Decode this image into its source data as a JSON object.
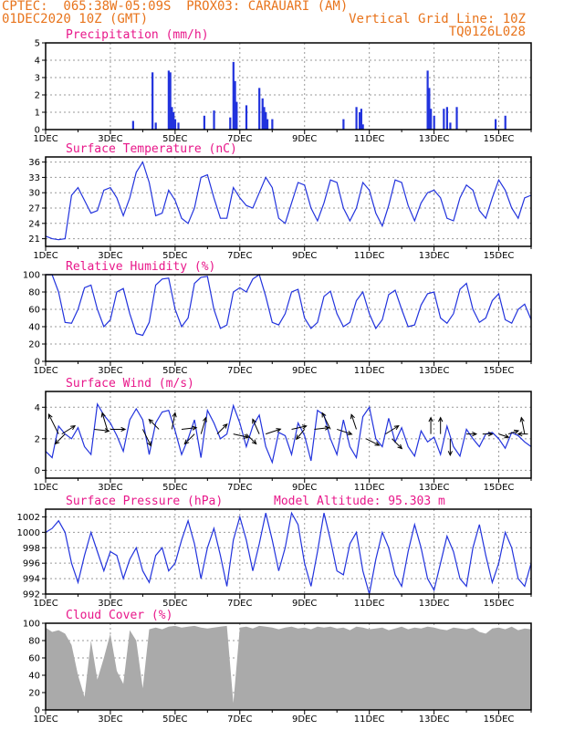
{
  "header": {
    "line1_left": "CPTEC:  065:38W-05:09S  PROX03: CARAUARI (AM)",
    "line2_left": "01DEC2020 10Z (GMT)",
    "line2_right": "Vertical Grid Line: 10Z",
    "line3_right": "TQ0126L028"
  },
  "colors": {
    "header": "#e8741c",
    "title": "#e8178a",
    "series": "#2233dd",
    "cloud": "#aaaaaa"
  },
  "x_days": [
    "1DEC",
    "3DEC",
    "5DEC",
    "7DEC",
    "9DEC",
    "11DEC",
    "13DEC",
    "15DEC"
  ],
  "chart_data": [
    {
      "type": "bar",
      "id": "precip",
      "title": "Precipitation (mm/h)",
      "ylim": [
        0,
        5
      ],
      "yticks": [
        0,
        1,
        2,
        3,
        4,
        5
      ],
      "x_days_range": [
        1,
        16
      ],
      "x": [
        3.7,
        4.3,
        4.4,
        4.8,
        4.85,
        4.9,
        4.95,
        5.0,
        5.1,
        5.9,
        6.2,
        6.7,
        6.8,
        6.85,
        6.9,
        7.2,
        7.6,
        7.7,
        7.75,
        7.8,
        7.85,
        8.0,
        10.2,
        10.6,
        10.7,
        10.75,
        10.8,
        12.8,
        12.85,
        12.9,
        13.0,
        13.3,
        13.4,
        13.5,
        13.7,
        14.9,
        15.2
      ],
      "values": [
        0.5,
        3.3,
        0.4,
        3.4,
        3.3,
        1.3,
        1.0,
        0.6,
        0.4,
        0.8,
        1.1,
        0.7,
        3.9,
        2.8,
        1.6,
        1.4,
        2.4,
        1.8,
        1.3,
        1.0,
        0.6,
        0.6,
        0.6,
        1.3,
        1.0,
        1.2,
        0.3,
        3.4,
        2.4,
        1.2,
        0.8,
        1.2,
        1.3,
        0.4,
        1.3,
        0.6,
        0.8
      ]
    },
    {
      "type": "line",
      "id": "temp",
      "title": "Surface Temperature (nC)",
      "ylim": [
        19.5,
        37
      ],
      "yticks": [
        21,
        24,
        27,
        30,
        33,
        36
      ],
      "x": [
        1.0,
        1.2,
        1.4,
        1.6,
        1.8,
        2.0,
        2.2,
        2.4,
        2.6,
        2.8,
        3.0,
        3.2,
        3.4,
        3.6,
        3.8,
        4.0,
        4.2,
        4.4,
        4.6,
        4.8,
        5.0,
        5.2,
        5.4,
        5.6,
        5.8,
        6.0,
        6.2,
        6.4,
        6.6,
        6.8,
        7.0,
        7.2,
        7.4,
        7.6,
        7.8,
        8.0,
        8.2,
        8.4,
        8.6,
        8.8,
        9.0,
        9.2,
        9.4,
        9.6,
        9.8,
        10.0,
        10.2,
        10.4,
        10.6,
        10.8,
        11.0,
        11.2,
        11.4,
        11.6,
        11.8,
        12.0,
        12.2,
        12.4,
        12.6,
        12.8,
        13.0,
        13.2,
        13.4,
        13.6,
        13.8,
        14.0,
        14.2,
        14.4,
        14.6,
        14.8,
        15.0,
        15.2,
        15.4,
        15.6,
        15.8,
        16.0
      ],
      "values": [
        21.5,
        21,
        20.8,
        21,
        29.5,
        31,
        28.5,
        26,
        26.5,
        30.5,
        31,
        29,
        25.5,
        29,
        34,
        36,
        32,
        25.5,
        26,
        30.5,
        28.5,
        25,
        24,
        27,
        33,
        33.5,
        29,
        25,
        25,
        31,
        29,
        27.5,
        27,
        30,
        33,
        31,
        25,
        24,
        28,
        32,
        31.5,
        27,
        24.5,
        28,
        32.5,
        32,
        27,
        24.5,
        27,
        32,
        30.5,
        26,
        23.5,
        27.5,
        32.5,
        32,
        27.5,
        24.5,
        28,
        30,
        30.5,
        29,
        25,
        24.5,
        29,
        31.5,
        30.5,
        26.5,
        25,
        29,
        32.5,
        30.5,
        27,
        25,
        29,
        29.5
      ]
    },
    {
      "type": "line",
      "id": "rh",
      "title": "Relative Humidity (%)",
      "ylim": [
        0,
        100
      ],
      "yticks": [
        0,
        20,
        40,
        60,
        80,
        100
      ],
      "x": [
        1.0,
        1.2,
        1.4,
        1.6,
        1.8,
        2.0,
        2.2,
        2.4,
        2.6,
        2.8,
        3.0,
        3.2,
        3.4,
        3.6,
        3.8,
        4.0,
        4.2,
        4.4,
        4.6,
        4.8,
        5.0,
        5.2,
        5.4,
        5.6,
        5.8,
        6.0,
        6.2,
        6.4,
        6.6,
        6.8,
        7.0,
        7.2,
        7.4,
        7.6,
        7.8,
        8.0,
        8.2,
        8.4,
        8.6,
        8.8,
        9.0,
        9.2,
        9.4,
        9.6,
        9.8,
        10.0,
        10.2,
        10.4,
        10.6,
        10.8,
        11.0,
        11.2,
        11.4,
        11.6,
        11.8,
        12.0,
        12.2,
        12.4,
        12.6,
        12.8,
        13.0,
        13.2,
        13.4,
        13.6,
        13.8,
        14.0,
        14.2,
        14.4,
        14.6,
        14.8,
        15.0,
        15.2,
        15.4,
        15.6,
        15.8,
        16.0
      ],
      "values": [
        100,
        100,
        80,
        45,
        44,
        60,
        85,
        88,
        60,
        40,
        48,
        80,
        84,
        55,
        32,
        30,
        45,
        88,
        95,
        96,
        60,
        40,
        50,
        90,
        97,
        98,
        60,
        38,
        42,
        80,
        85,
        80,
        95,
        100,
        75,
        45,
        42,
        55,
        80,
        83,
        50,
        38,
        45,
        75,
        81,
        55,
        40,
        45,
        70,
        80,
        55,
        38,
        48,
        77,
        82,
        60,
        40,
        42,
        65,
        78,
        80,
        50,
        44,
        55,
        83,
        90,
        60,
        45,
        50,
        70,
        78,
        48,
        44,
        60,
        66,
        48
      ]
    },
    {
      "type": "line",
      "id": "wind",
      "title": "Surface Wind (m/s)",
      "ylim": [
        -0.5,
        5
      ],
      "yticks": [
        0,
        2,
        4
      ],
      "x": [
        1.0,
        1.2,
        1.4,
        1.6,
        1.8,
        2.0,
        2.2,
        2.4,
        2.6,
        2.8,
        3.0,
        3.2,
        3.4,
        3.6,
        3.8,
        4.0,
        4.2,
        4.4,
        4.6,
        4.8,
        5.0,
        5.2,
        5.4,
        5.6,
        5.8,
        6.0,
        6.2,
        6.4,
        6.6,
        6.8,
        7.0,
        7.2,
        7.4,
        7.6,
        7.8,
        8.0,
        8.2,
        8.4,
        8.6,
        8.8,
        9.0,
        9.2,
        9.4,
        9.6,
        9.8,
        10.0,
        10.2,
        10.4,
        10.6,
        10.8,
        11.0,
        11.2,
        11.4,
        11.6,
        11.8,
        12.0,
        12.2,
        12.4,
        12.6,
        12.8,
        13.0,
        13.2,
        13.4,
        13.6,
        13.8,
        14.0,
        14.2,
        14.4,
        14.6,
        14.8,
        15.0,
        15.2,
        15.4,
        15.6,
        15.8,
        16.0
      ],
      "values": [
        1.2,
        0.8,
        2.8,
        2.3,
        2.0,
        2.7,
        1.5,
        1.0,
        4.2,
        3.5,
        3.0,
        2.2,
        1.2,
        3.2,
        3.9,
        3.2,
        1.0,
        3.0,
        3.7,
        3.8,
        2.5,
        1.0,
        2.0,
        3.2,
        0.8,
        3.8,
        3.0,
        2.0,
        2.3,
        4.1,
        3.0,
        1.5,
        2.8,
        3.5,
        1.5,
        0.5,
        2.4,
        2.2,
        1.0,
        3.0,
        2.2,
        0.6,
        3.8,
        3.5,
        2.0,
        1.0,
        3.2,
        1.5,
        0.8,
        3.4,
        4.0,
        2.0,
        1.5,
        3.3,
        1.8,
        2.7,
        1.5,
        0.9,
        2.5,
        1.8,
        2.1,
        1.0,
        2.8,
        1.5,
        0.9,
        2.6,
        2.0,
        1.5,
        2.3,
        2.4,
        2.0,
        1.4,
        2.4,
        2.2,
        1.8,
        1.5
      ],
      "arrows": [
        {
          "x": 1.4,
          "y": 2.3,
          "u": -0.6,
          "v": 1.2
        },
        {
          "x": 1.5,
          "y": 2.3,
          "u": 0.8,
          "v": 0.5
        },
        {
          "x": 1.6,
          "y": 2.3,
          "u": -0.6,
          "v": -0.6
        },
        {
          "x": 2.5,
          "y": 2.6,
          "u": 0.9,
          "v": -0.1
        },
        {
          "x": 2.9,
          "y": 2.6,
          "u": -0.3,
          "v": 1.0
        },
        {
          "x": 3.0,
          "y": 2.6,
          "u": 0.9,
          "v": 0.0
        },
        {
          "x": 4.0,
          "y": 2.6,
          "u": 0.5,
          "v": -1.0
        },
        {
          "x": 4.5,
          "y": 2.6,
          "u": -0.6,
          "v": 0.6
        },
        {
          "x": 4.9,
          "y": 2.6,
          "u": 0.2,
          "v": 1.0
        },
        {
          "x": 5.2,
          "y": 2.6,
          "u": 0.9,
          "v": 0.1
        },
        {
          "x": 5.6,
          "y": 2.3,
          "u": -0.6,
          "v": -0.6
        },
        {
          "x": 5.8,
          "y": 2.3,
          "u": 0.3,
          "v": 1.0
        },
        {
          "x": 6.3,
          "y": 2.3,
          "u": 0.6,
          "v": 0.6
        },
        {
          "x": 6.8,
          "y": 2.3,
          "u": 0.9,
          "v": -0.2
        },
        {
          "x": 7.2,
          "y": 2.3,
          "u": 0.6,
          "v": -0.6
        },
        {
          "x": 7.6,
          "y": 2.3,
          "u": -0.4,
          "v": 0.9
        },
        {
          "x": 7.8,
          "y": 2.3,
          "u": 0.9,
          "v": 0.3
        },
        {
          "x": 8.6,
          "y": 2.6,
          "u": 0.9,
          "v": 0.2
        },
        {
          "x": 9.0,
          "y": 2.6,
          "u": -0.5,
          "v": -0.6
        },
        {
          "x": 9.3,
          "y": 2.6,
          "u": 0.9,
          "v": 0.1
        },
        {
          "x": 9.8,
          "y": 2.6,
          "u": -0.5,
          "v": 1.0
        },
        {
          "x": 10.0,
          "y": 2.6,
          "u": 0.9,
          "v": -0.3
        },
        {
          "x": 10.6,
          "y": 2.6,
          "u": -0.3,
          "v": 0.9
        },
        {
          "x": 10.9,
          "y": 2.0,
          "u": 0.8,
          "v": -0.4
        },
        {
          "x": 11.5,
          "y": 2.3,
          "u": 0.8,
          "v": 0.5
        },
        {
          "x": 11.7,
          "y": 2.0,
          "u": 0.6,
          "v": -0.6
        },
        {
          "x": 12.9,
          "y": 2.3,
          "u": 0.0,
          "v": 1.0
        },
        {
          "x": 13.2,
          "y": 2.3,
          "u": 0.0,
          "v": 1.0
        },
        {
          "x": 13.5,
          "y": 2.0,
          "u": 0.0,
          "v": -1.0
        },
        {
          "x": 14.0,
          "y": 2.3,
          "u": 0.6,
          "v": 0.0
        },
        {
          "x": 14.5,
          "y": 2.3,
          "u": 0.6,
          "v": 0.0
        },
        {
          "x": 15.0,
          "y": 2.3,
          "u": 0.6,
          "v": -0.2
        },
        {
          "x": 15.3,
          "y": 2.3,
          "u": 0.6,
          "v": 0.2
        },
        {
          "x": 15.8,
          "y": 2.3,
          "u": -0.2,
          "v": 1.0
        },
        {
          "x": 15.9,
          "y": 2.3,
          "u": -0.6,
          "v": 0.0
        }
      ]
    },
    {
      "type": "line",
      "id": "pressure",
      "title": "Surface Pressure (hPa)",
      "annotation": "Model Altitude: 95.303 m",
      "ylim": [
        992,
        1003
      ],
      "yticks": [
        992,
        994,
        996,
        998,
        1000,
        1002
      ],
      "x": [
        1.0,
        1.2,
        1.4,
        1.6,
        1.8,
        2.0,
        2.2,
        2.4,
        2.6,
        2.8,
        3.0,
        3.2,
        3.4,
        3.6,
        3.8,
        4.0,
        4.2,
        4.4,
        4.6,
        4.8,
        5.0,
        5.2,
        5.4,
        5.6,
        5.8,
        6.0,
        6.2,
        6.4,
        6.6,
        6.8,
        7.0,
        7.2,
        7.4,
        7.6,
        7.8,
        8.0,
        8.2,
        8.4,
        8.6,
        8.8,
        9.0,
        9.2,
        9.4,
        9.6,
        9.8,
        10.0,
        10.2,
        10.4,
        10.6,
        10.8,
        11.0,
        11.2,
        11.4,
        11.6,
        11.8,
        12.0,
        12.2,
        12.4,
        12.6,
        12.8,
        13.0,
        13.2,
        13.4,
        13.6,
        13.8,
        14.0,
        14.2,
        14.4,
        14.6,
        14.8,
        15.0,
        15.2,
        15.4,
        15.6,
        15.8,
        16.0
      ],
      "values": [
        1000,
        1000.5,
        1001.5,
        1000,
        996,
        993.5,
        997,
        1000,
        997.5,
        995,
        997.5,
        997,
        994,
        996.5,
        998,
        995,
        993.5,
        997,
        998,
        995,
        996,
        999,
        1001.5,
        998.5,
        994,
        998,
        1000.5,
        997,
        993,
        999,
        1002,
        999,
        995,
        998.5,
        1002.5,
        999,
        995,
        998,
        1002.5,
        1001,
        996,
        993,
        997.5,
        1002.5,
        999,
        995,
        994.5,
        998.5,
        1000,
        995,
        992,
        996.5,
        1000,
        998,
        994.5,
        993,
        997.5,
        1001,
        998,
        994,
        992.5,
        996,
        999.5,
        997.5,
        994,
        993,
        998,
        1001,
        997,
        993.5,
        996,
        1000,
        998,
        994,
        993,
        996
      ]
    },
    {
      "type": "area",
      "id": "cloud",
      "title": "Cloud Cover (%)",
      "ylim": [
        0,
        100
      ],
      "yticks": [
        0,
        20,
        40,
        60,
        80,
        100
      ],
      "x": [
        1.0,
        1.2,
        1.4,
        1.6,
        1.8,
        2.0,
        2.2,
        2.4,
        2.6,
        2.8,
        3.0,
        3.2,
        3.4,
        3.6,
        3.8,
        4.0,
        4.2,
        4.4,
        4.6,
        4.8,
        5.0,
        5.2,
        5.4,
        5.6,
        5.8,
        6.0,
        6.2,
        6.4,
        6.6,
        6.8,
        7.0,
        7.2,
        7.4,
        7.6,
        7.8,
        8.0,
        8.2,
        8.4,
        8.6,
        8.8,
        9.0,
        9.2,
        9.4,
        9.6,
        9.8,
        10.0,
        10.2,
        10.4,
        10.6,
        10.8,
        11.0,
        11.2,
        11.4,
        11.6,
        11.8,
        12.0,
        12.2,
        12.4,
        12.6,
        12.8,
        13.0,
        13.2,
        13.4,
        13.6,
        13.8,
        14.0,
        14.2,
        14.4,
        14.6,
        14.8,
        15.0,
        15.2,
        15.4,
        15.6,
        15.8,
        16.0
      ],
      "values": [
        95,
        90,
        92,
        88,
        75,
        40,
        15,
        80,
        35,
        60,
        88,
        45,
        30,
        92,
        80,
        25,
        93,
        95,
        93,
        96,
        97,
        95,
        96,
        97,
        95,
        94,
        95,
        96,
        97,
        8,
        95,
        96,
        94,
        97,
        96,
        95,
        93,
        95,
        96,
        94,
        95,
        93,
        96,
        95,
        96,
        94,
        95,
        92,
        96,
        95,
        93,
        94,
        95,
        92,
        94,
        96,
        93,
        95,
        94,
        96,
        95,
        93,
        92,
        95,
        94,
        93,
        95,
        90,
        88,
        94,
        95,
        93,
        96,
        92,
        94,
        93
      ]
    }
  ]
}
